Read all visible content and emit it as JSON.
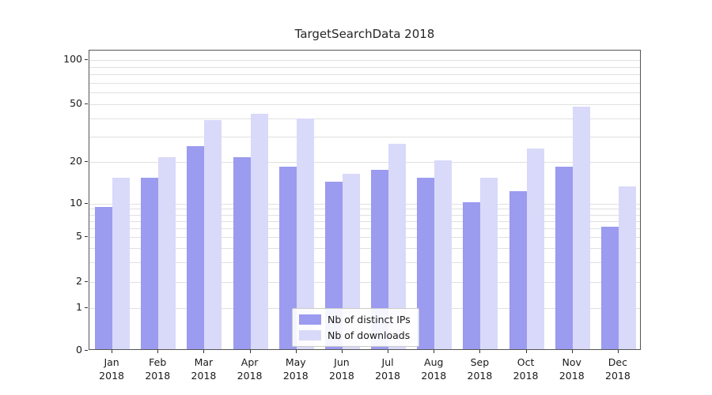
{
  "chart_data": {
    "type": "bar",
    "title": "TargetSearchData 2018",
    "yscale": "symlog",
    "grid": true,
    "legend_position": "lower center",
    "months": [
      "Jan",
      "Feb",
      "Mar",
      "Apr",
      "May",
      "Jun",
      "Jul",
      "Aug",
      "Sep",
      "Oct",
      "Nov",
      "Dec"
    ],
    "year": "2018",
    "yticks": [
      0,
      1,
      2,
      5,
      10,
      20,
      50,
      100
    ],
    "ylim": [
      0,
      120
    ],
    "series": [
      {
        "name": "Nb of distinct IPs",
        "color": "#9b9bf0",
        "values": [
          9,
          15,
          25,
          21,
          18,
          14,
          17,
          15,
          10,
          12,
          18,
          6
        ]
      },
      {
        "name": "Nb of downloads",
        "color": "#d9d9f9",
        "values": [
          15,
          21,
          38,
          42,
          39,
          16,
          26,
          20,
          15,
          24,
          47,
          13
        ]
      }
    ]
  }
}
